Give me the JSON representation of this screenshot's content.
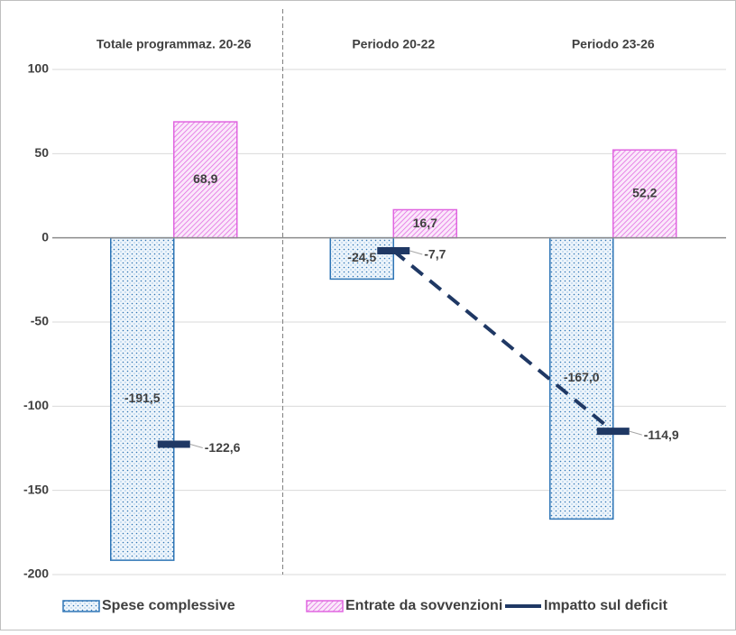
{
  "chart_data": {
    "type": "bar",
    "categories": [
      "Totale programmaz. 20-26",
      "Periodo 20-22",
      "Periodo 23-26"
    ],
    "series": [
      {
        "name": "Spese complessive",
        "color": "#2e75b6",
        "values": [
          -191.5,
          -24.5,
          -167.0
        ],
        "value_labels": [
          "-191,5",
          "-24,5",
          "-167,0"
        ]
      },
      {
        "name": "Entrate da sovvenzioni",
        "color": "#e066e0",
        "values": [
          68.9,
          16.7,
          52.2
        ],
        "value_labels": [
          "68,9",
          "16,7",
          "52,2"
        ]
      },
      {
        "name": "Impatto sul deficit",
        "color": "#1f3864",
        "type": "line",
        "values": [
          -122.6,
          -7.7,
          -114.9
        ],
        "value_labels": [
          "-122,6",
          "-7,7",
          "-114,9"
        ]
      }
    ],
    "ylim": [
      -200,
      100
    ],
    "yticks": [
      -200,
      -150,
      -100,
      -50,
      0,
      50,
      100
    ],
    "grid": true,
    "legend": "bottom"
  }
}
